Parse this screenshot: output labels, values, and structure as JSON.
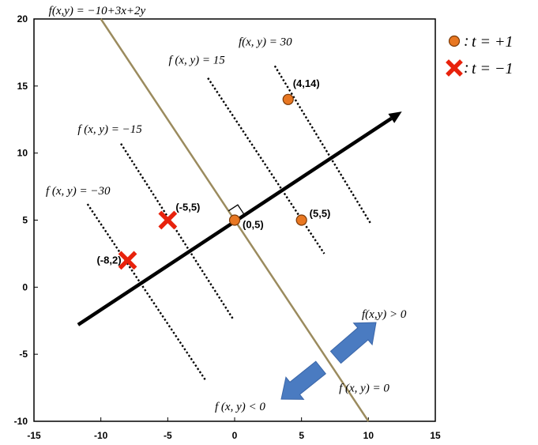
{
  "chart_data": {
    "type": "scatter",
    "xlim": [
      -15,
      15
    ],
    "ylim": [
      -10,
      20
    ],
    "x_ticks": [
      "-15",
      "-10",
      "-5",
      "0",
      "5",
      "10",
      "15"
    ],
    "y_ticks": [
      "-10",
      "-5",
      "0",
      "5",
      "10",
      "15",
      "20"
    ],
    "grid": false,
    "legend_position": "top-right",
    "legend": [
      {
        "symbol": "orange-circle",
        "label": "t = +1",
        "color": "#E87722"
      },
      {
        "symbol": "red-cross",
        "label": "t = −1",
        "color": "#E8220C"
      }
    ],
    "points": [
      {
        "x": 4,
        "y": 14,
        "label": "(4,14)",
        "class": "+1"
      },
      {
        "x": 5,
        "y": 5,
        "label": "(5,5)",
        "class": "+1"
      },
      {
        "x": 0,
        "y": 5,
        "label": "(0,5)",
        "class": "+1"
      },
      {
        "x": -5,
        "y": 5,
        "label": "(-5,5)",
        "class": "-1"
      },
      {
        "x": -8,
        "y": 2,
        "label": "(-8,2)",
        "class": "-1"
      }
    ],
    "boundary": {
      "equation_label": "f(x,y) = −10+3x+2y",
      "zero_label": "f (x, y) = 0",
      "color": "#9B8B5E",
      "x": [
        -10,
        10
      ],
      "y": [
        20,
        -10
      ]
    },
    "normal_arrow": {
      "color": "#000000",
      "x": [
        -11.7,
        12.5
      ],
      "y": [
        -2.8,
        13.1
      ]
    },
    "contours": [
      {
        "label": "f(x, y) = 30",
        "x": [
          3,
          10.2
        ],
        "y": [
          16.5,
          4.7
        ]
      },
      {
        "label": "f (x, y) = 15",
        "x": [
          -2,
          6.7
        ],
        "y": [
          15.6,
          2.5
        ]
      },
      {
        "label": "f (x, y) = −15",
        "x": [
          -8.5,
          -0.1
        ],
        "y": [
          10.7,
          -2.4
        ]
      },
      {
        "label": "f (x, y) = −30",
        "x": [
          -11,
          -2.2
        ],
        "y": [
          6.2,
          -6.9
        ]
      }
    ],
    "region_labels": {
      "positive": "f(x,y) > 0",
      "negative": "f (x, y) < 0"
    },
    "region_arrow_color": "#4A7BC1"
  }
}
